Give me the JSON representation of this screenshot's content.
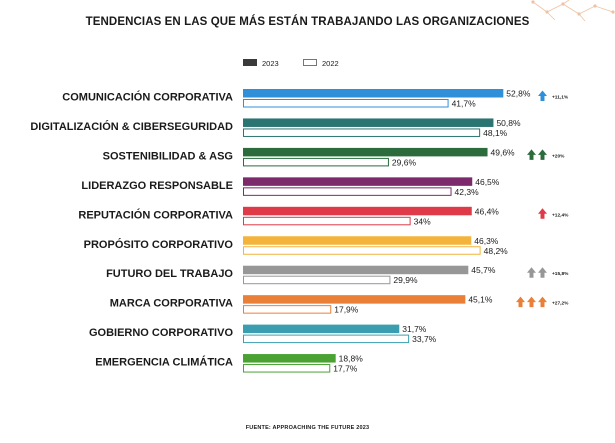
{
  "chart_data": {
    "type": "bar",
    "orientation": "horizontal",
    "title": "TENDENCIAS EN LAS QUE MÁS ESTÁN TRABAJANDO LAS ORGANIZACIONES",
    "source": "FUENTE: APPROACHING THE FUTURE 2023",
    "legend_position": "top-left",
    "grid": false,
    "xlim": [
      0,
      60
    ],
    "categories": [
      "COMUNICACIÓN CORPORATIVA",
      "DIGITALIZACIÓN & CIBERSEGURIDAD",
      "SOSTENIBILIDAD & ASG",
      "LIDERAZGO RESPONSABLE",
      "REPUTACIÓN CORPORATIVA",
      "PROPÓSITO CORPORATIVO",
      "FUTURO DEL TRABAJO",
      "MARCA CORPORATIVA",
      "GOBIERNO CORPORATIVO",
      "EMERGENCIA CLIMÁTICA"
    ],
    "series": [
      {
        "name": "2023",
        "legend_color": "#3a3a3a",
        "values": [
          52.8,
          50.8,
          49.6,
          46.5,
          46.4,
          46.3,
          45.7,
          45.1,
          31.7,
          18.8
        ],
        "labels": [
          "52,8%",
          "50,8%",
          "49,6%",
          "46,5%",
          "46,4%",
          "46,3%",
          "45,7%",
          "45,1%",
          "31,7%",
          "18,8%"
        ]
      },
      {
        "name": "2022",
        "values": [
          41.7,
          48.1,
          29.6,
          42.3,
          34,
          48.2,
          29.9,
          17.9,
          33.7,
          17.7
        ],
        "labels": [
          "41,7%",
          "48,1%",
          "29,6%",
          "42,3%",
          "34%",
          "48,2%",
          "29,9%",
          "17,9%",
          "33,7%",
          "17,7%"
        ]
      }
    ],
    "category_colors": [
      "#2f8fd8",
      "#2a7472",
      "#2b6b3c",
      "#7d2a6d",
      "#de3a47",
      "#f4b43c",
      "#979797",
      "#ea8038",
      "#3a9eb0",
      "#4aa233"
    ],
    "annotations": [
      {
        "category_index": 0,
        "text": "+11,1%",
        "arrows": 1,
        "color": "#2f8fd8"
      },
      {
        "category_index": 2,
        "text": "+20%",
        "arrows": 2,
        "color": "#2b6b3c"
      },
      {
        "category_index": 4,
        "text": "+12,4%",
        "arrows": 1,
        "color": "#de3a47"
      },
      {
        "category_index": 6,
        "text": "+15,8%",
        "arrows": 2,
        "color": "#979797"
      },
      {
        "category_index": 7,
        "text": "+27,2%",
        "arrows": 3,
        "color": "#ea8038"
      }
    ]
  }
}
